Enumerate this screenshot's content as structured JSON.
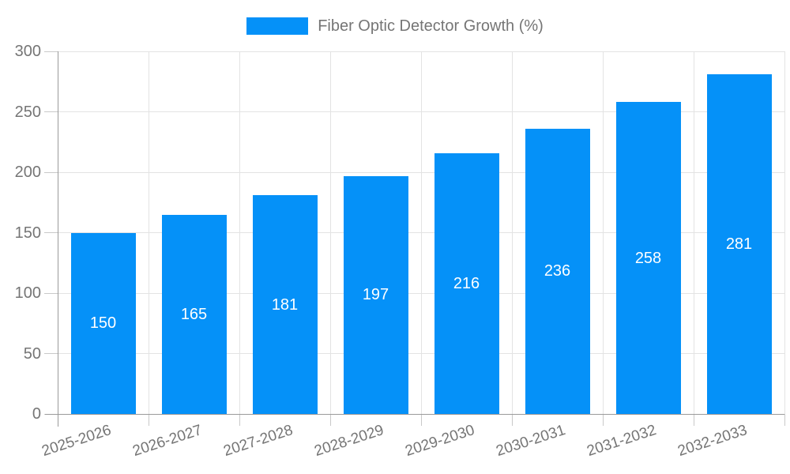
{
  "chart_data": {
    "type": "bar",
    "title": "",
    "legend_label": "Fiber Optic Detector Growth (%)",
    "legend_position": "top",
    "categories": [
      "2025-2026",
      "2026-2027",
      "2027-2028",
      "2028-2029",
      "2029-2030",
      "2030-2031",
      "2031-2032",
      "2032-2033"
    ],
    "values": [
      150,
      165,
      181,
      197,
      216,
      236,
      258,
      281
    ],
    "xlabel": "",
    "ylabel": "",
    "ylim": [
      0,
      300
    ],
    "yticks": [
      0,
      50,
      100,
      150,
      200,
      250,
      300
    ],
    "grid": "both",
    "colors": {
      "bar": "#0591f8",
      "value_label": "#ffffff",
      "axis_text": "#757575",
      "gridline": "#e3e3e3",
      "tick": "#c9c9c9",
      "axis_line": "#9a9a9a"
    }
  }
}
